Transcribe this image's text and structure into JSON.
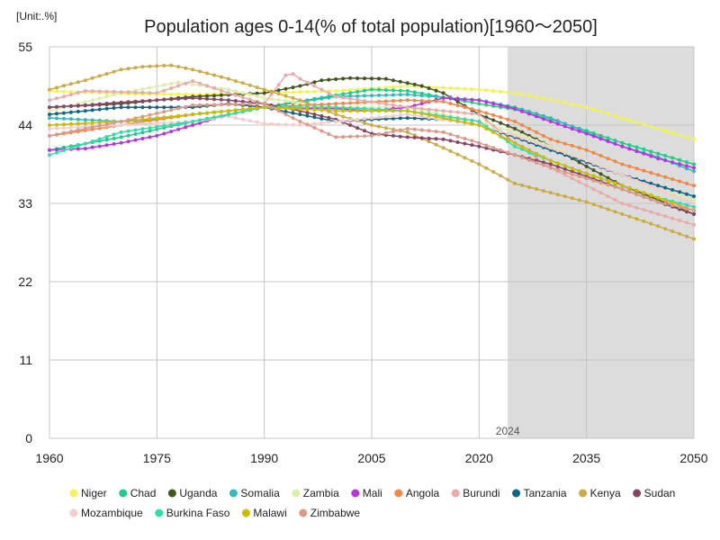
{
  "chart_data": {
    "type": "line",
    "title": "Population ages 0-14(% of total population)[1960～2050]",
    "unit_label": "[Unit:.%]",
    "xlabel": "",
    "ylabel": "",
    "xlim": [
      1960,
      2050
    ],
    "ylim": [
      0,
      55
    ],
    "x_ticks": [
      1960,
      1975,
      1990,
      2005,
      2020,
      2035,
      2050
    ],
    "y_ticks": [
      0,
      11,
      22,
      33,
      44,
      55
    ],
    "grid": true,
    "legend_position": "bottom",
    "highlight": {
      "from": 2024,
      "to": 2050,
      "label": "2024",
      "color": "#dcdcdc"
    },
    "series": [
      {
        "name": "Niger",
        "color": "#f2f25a",
        "points": [
          [
            1960,
            48.8
          ],
          [
            1970,
            48.4
          ],
          [
            1980,
            48.3
          ],
          [
            1990,
            48.5
          ],
          [
            2000,
            48.8
          ],
          [
            2010,
            49.5
          ],
          [
            2020,
            49.0
          ],
          [
            2025,
            48.5
          ],
          [
            2030,
            47.6
          ],
          [
            2035,
            46.5
          ],
          [
            2040,
            45.0
          ],
          [
            2045,
            43.5
          ],
          [
            2050,
            42.0
          ]
        ]
      },
      {
        "name": "Chad",
        "color": "#22cc88",
        "points": [
          [
            1960,
            40.5
          ],
          [
            1970,
            42.3
          ],
          [
            1980,
            44.5
          ],
          [
            1990,
            46.5
          ],
          [
            2000,
            48.2
          ],
          [
            2005,
            49.0
          ],
          [
            2010,
            48.8
          ],
          [
            2020,
            47.0
          ],
          [
            2025,
            46.2
          ],
          [
            2030,
            44.8
          ],
          [
            2035,
            43.2
          ],
          [
            2040,
            41.5
          ],
          [
            2045,
            40.0
          ],
          [
            2050,
            38.5
          ]
        ]
      },
      {
        "name": "Uganda",
        "color": "#445522",
        "points": [
          [
            1960,
            46.5
          ],
          [
            1970,
            47.0
          ],
          [
            1975,
            47.5
          ],
          [
            1980,
            48.0
          ],
          [
            1990,
            48.5
          ],
          [
            1995,
            49.5
          ],
          [
            1998,
            50.3
          ],
          [
            2002,
            50.6
          ],
          [
            2007,
            50.5
          ],
          [
            2012,
            49.5
          ],
          [
            2015,
            48.5
          ],
          [
            2020,
            45.5
          ],
          [
            2025,
            43.5
          ],
          [
            2030,
            41.0
          ],
          [
            2035,
            38.2
          ],
          [
            2040,
            35.5
          ],
          [
            2045,
            33.5
          ],
          [
            2050,
            31.5
          ]
        ]
      },
      {
        "name": "Somalia",
        "color": "#33bbbb",
        "points": [
          [
            1960,
            45.0
          ],
          [
            1970,
            44.5
          ],
          [
            1975,
            44.8
          ],
          [
            1980,
            45.5
          ],
          [
            1990,
            46.5
          ],
          [
            2000,
            48.0
          ],
          [
            2010,
            48.3
          ],
          [
            2020,
            47.5
          ],
          [
            2025,
            46.5
          ],
          [
            2030,
            45.0
          ],
          [
            2035,
            43.0
          ],
          [
            2040,
            41.0
          ],
          [
            2045,
            39.5
          ],
          [
            2050,
            37.5
          ]
        ]
      },
      {
        "name": "Zambia",
        "color": "#ddeeaa",
        "points": [
          [
            1960,
            46.0
          ],
          [
            1970,
            48.5
          ],
          [
            1978,
            50.0
          ],
          [
            1985,
            49.0
          ],
          [
            1990,
            47.8
          ],
          [
            2000,
            46.5
          ],
          [
            2010,
            46.5
          ],
          [
            2020,
            44.5
          ],
          [
            2025,
            43.0
          ],
          [
            2030,
            41.0
          ],
          [
            2035,
            39.0
          ],
          [
            2040,
            37.0
          ],
          [
            2045,
            35.0
          ],
          [
            2050,
            33.5
          ]
        ]
      },
      {
        "name": "Mali",
        "color": "#bb33dd",
        "points": [
          [
            1960,
            40.5
          ],
          [
            1965,
            40.7
          ],
          [
            1970,
            41.5
          ],
          [
            1975,
            42.5
          ],
          [
            1980,
            44.0
          ],
          [
            1985,
            45.5
          ],
          [
            1990,
            46.5
          ],
          [
            2000,
            46.3
          ],
          [
            2005,
            46.0
          ],
          [
            2010,
            46.5
          ],
          [
            2015,
            47.8
          ],
          [
            2020,
            47.5
          ],
          [
            2025,
            46.3
          ],
          [
            2030,
            44.5
          ],
          [
            2035,
            42.8
          ],
          [
            2040,
            41.0
          ],
          [
            2045,
            39.3
          ],
          [
            2050,
            38.0
          ]
        ]
      },
      {
        "name": "Angola",
        "color": "#ee8844",
        "points": [
          [
            1960,
            42.5
          ],
          [
            1970,
            44.0
          ],
          [
            1980,
            45.5
          ],
          [
            1990,
            46.5
          ],
          [
            2000,
            47.0
          ],
          [
            2010,
            47.5
          ],
          [
            2015,
            47.3
          ],
          [
            2020,
            46.0
          ],
          [
            2025,
            44.5
          ],
          [
            2030,
            42.0
          ],
          [
            2035,
            40.5
          ],
          [
            2040,
            38.5
          ],
          [
            2045,
            37.0
          ],
          [
            2050,
            35.5
          ]
        ]
      },
      {
        "name": "Burundi",
        "color": "#e8aaaa",
        "points": [
          [
            1960,
            47.5
          ],
          [
            1965,
            48.8
          ],
          [
            1975,
            48.5
          ],
          [
            1980,
            50.2
          ],
          [
            1985,
            48.5
          ],
          [
            1990,
            47.0
          ],
          [
            1993,
            51.0
          ],
          [
            1994,
            51.2
          ],
          [
            1995,
            50.5
          ],
          [
            2000,
            48.0
          ],
          [
            2010,
            46.5
          ],
          [
            2020,
            45.5
          ],
          [
            2025,
            41.5
          ],
          [
            2030,
            38.0
          ],
          [
            2035,
            35.5
          ],
          [
            2040,
            33.0
          ],
          [
            2045,
            31.5
          ],
          [
            2050,
            30.0
          ]
        ]
      },
      {
        "name": "Tanzania",
        "color": "#116688",
        "points": [
          [
            1960,
            45.5
          ],
          [
            1970,
            46.5
          ],
          [
            1980,
            46.5
          ],
          [
            1985,
            47.0
          ],
          [
            1990,
            46.5
          ],
          [
            1995,
            45.5
          ],
          [
            2000,
            44.5
          ],
          [
            2005,
            44.8
          ],
          [
            2010,
            45.0
          ],
          [
            2015,
            44.8
          ],
          [
            2020,
            44.0
          ],
          [
            2025,
            42.3
          ],
          [
            2030,
            40.5
          ],
          [
            2035,
            38.8
          ],
          [
            2040,
            37.0
          ],
          [
            2045,
            35.5
          ],
          [
            2050,
            34.0
          ]
        ]
      },
      {
        "name": "Kenya",
        "color": "#ccaa44",
        "points": [
          [
            1960,
            49.0
          ],
          [
            1965,
            50.3
          ],
          [
            1970,
            51.8
          ],
          [
            1973,
            52.2
          ],
          [
            1977,
            52.4
          ],
          [
            1980,
            51.8
          ],
          [
            1985,
            50.5
          ],
          [
            1990,
            49.0
          ],
          [
            1995,
            47.5
          ],
          [
            2000,
            45.5
          ],
          [
            2005,
            44.0
          ],
          [
            2010,
            43.0
          ],
          [
            2015,
            40.8
          ],
          [
            2020,
            38.5
          ],
          [
            2025,
            35.8
          ],
          [
            2030,
            34.5
          ],
          [
            2035,
            33.2
          ],
          [
            2040,
            31.5
          ],
          [
            2045,
            29.8
          ],
          [
            2050,
            28.0
          ]
        ]
      },
      {
        "name": "Sudan",
        "color": "#884466",
        "points": [
          [
            1960,
            46.5
          ],
          [
            1965,
            46.8
          ],
          [
            1970,
            47.2
          ],
          [
            1975,
            47.5
          ],
          [
            1980,
            47.8
          ],
          [
            1985,
            47.5
          ],
          [
            1990,
            47.0
          ],
          [
            1995,
            46.0
          ],
          [
            2000,
            44.8
          ],
          [
            2005,
            42.8
          ],
          [
            2010,
            42.3
          ],
          [
            2015,
            42.0
          ],
          [
            2020,
            41.0
          ],
          [
            2025,
            39.8
          ],
          [
            2030,
            38.5
          ],
          [
            2035,
            36.8
          ],
          [
            2040,
            35.0
          ],
          [
            2045,
            33.2
          ],
          [
            2050,
            31.5
          ]
        ]
      },
      {
        "name": "Mozambique",
        "color": "#f4cccc",
        "points": [
          [
            1960,
            43.5
          ],
          [
            1970,
            44.0
          ],
          [
            1980,
            44.5
          ],
          [
            1985,
            45.2
          ],
          [
            1990,
            44.2
          ],
          [
            1995,
            44.0
          ],
          [
            2000,
            44.5
          ],
          [
            2010,
            45.5
          ],
          [
            2020,
            44.0
          ],
          [
            2025,
            42.5
          ],
          [
            2030,
            40.8
          ],
          [
            2035,
            39.0
          ],
          [
            2040,
            37.0
          ],
          [
            2045,
            35.0
          ],
          [
            2050,
            33.0
          ]
        ]
      },
      {
        "name": "Burkina Faso",
        "color": "#33ddaa",
        "points": [
          [
            1960,
            39.8
          ],
          [
            1970,
            43.0
          ],
          [
            1980,
            44.5
          ],
          [
            1990,
            46.5
          ],
          [
            2000,
            46.5
          ],
          [
            2010,
            46.0
          ],
          [
            2020,
            44.5
          ],
          [
            2025,
            41.0
          ],
          [
            2030,
            39.0
          ],
          [
            2035,
            37.2
          ],
          [
            2040,
            35.5
          ],
          [
            2045,
            33.8
          ],
          [
            2050,
            32.5
          ]
        ]
      },
      {
        "name": "Malawi",
        "color": "#ccbb00",
        "points": [
          [
            1960,
            44.0
          ],
          [
            1970,
            44.5
          ],
          [
            1980,
            45.5
          ],
          [
            1990,
            46.5
          ],
          [
            2000,
            46.0
          ],
          [
            2010,
            46.0
          ],
          [
            2020,
            44.0
          ],
          [
            2025,
            41.5
          ],
          [
            2030,
            39.0
          ],
          [
            2035,
            37.2
          ],
          [
            2040,
            35.5
          ],
          [
            2045,
            33.8
          ],
          [
            2050,
            32.0
          ]
        ]
      },
      {
        "name": "Zimbabwe",
        "color": "#dd9988",
        "points": [
          [
            1960,
            42.5
          ],
          [
            1970,
            44.5
          ],
          [
            1980,
            46.8
          ],
          [
            1990,
            47.0
          ],
          [
            1995,
            44.5
          ],
          [
            2000,
            42.3
          ],
          [
            2005,
            42.5
          ],
          [
            2010,
            43.5
          ],
          [
            2015,
            43.0
          ],
          [
            2020,
            41.5
          ],
          [
            2025,
            39.8
          ],
          [
            2030,
            38.0
          ],
          [
            2035,
            36.5
          ],
          [
            2040,
            35.0
          ],
          [
            2045,
            33.2
          ],
          [
            2050,
            32.0
          ]
        ]
      }
    ]
  }
}
